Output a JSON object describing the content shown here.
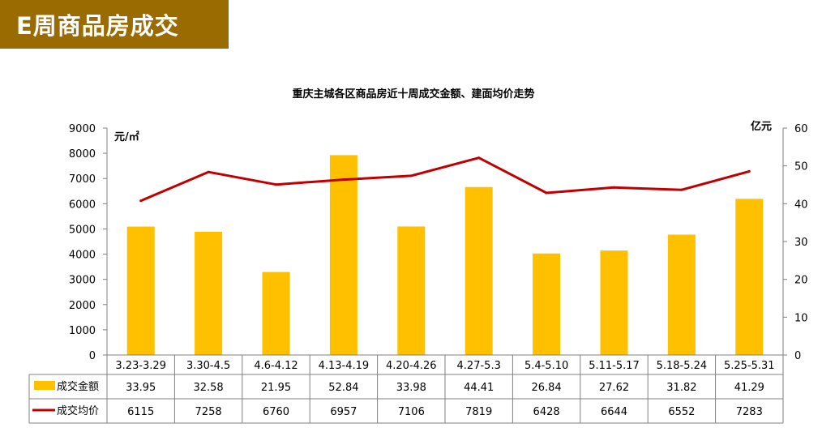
{
  "header": {
    "title": "E周商品房成交"
  },
  "chart_data": {
    "type": "bar",
    "title": "重庆主城各区商品房近十周成交金额、建面均价走势",
    "categories": [
      "3.23-3.29",
      "3.30-4.5",
      "4.6-4.12",
      "4.13-4.19",
      "4.20-4.26",
      "4.27-5.3",
      "5.4-5.10",
      "5.11-5.17",
      "5.18-5.24",
      "5.25-5.31"
    ],
    "series": [
      {
        "name": "成交金额",
        "type": "bar",
        "axis": "right",
        "values": [
          33.95,
          32.58,
          21.95,
          52.84,
          33.98,
          44.41,
          26.84,
          27.62,
          31.82,
          41.29
        ],
        "color": "#ffc000"
      },
      {
        "name": "成交均价",
        "type": "line",
        "axis": "left",
        "values": [
          6115,
          7258,
          6760,
          6957,
          7106,
          7819,
          6428,
          6644,
          6552,
          7283
        ],
        "color": "#c00000"
      }
    ],
    "left_axis": {
      "unit": "元/㎡",
      "min": 0,
      "max": 9000,
      "ticks": [
        0,
        1000,
        2000,
        3000,
        4000,
        5000,
        6000,
        7000,
        8000,
        9000
      ]
    },
    "right_axis": {
      "unit": "亿元",
      "min": 0,
      "max": 60,
      "ticks": [
        0,
        10,
        20,
        30,
        40,
        50,
        60
      ]
    },
    "grid": false,
    "legend": "data-table"
  }
}
